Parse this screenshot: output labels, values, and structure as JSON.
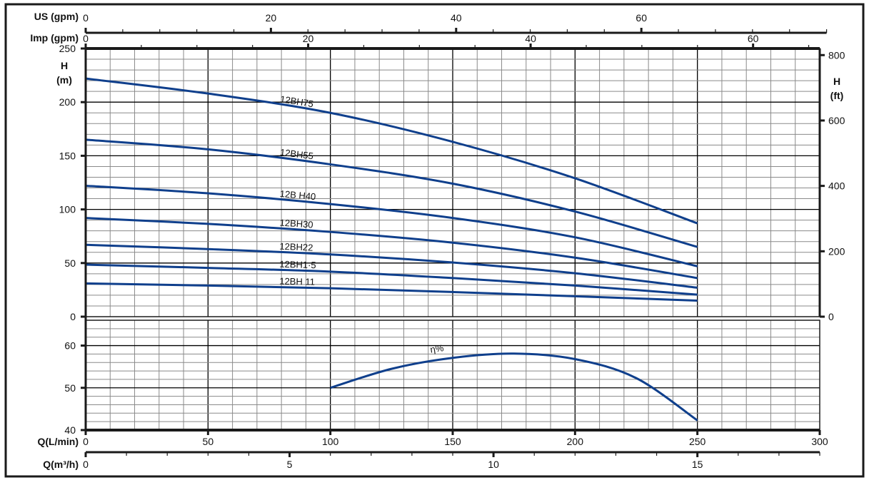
{
  "chart_data": [
    {
      "type": "line",
      "panel": "head",
      "xlabel": "Q(L/min)",
      "ylabel": "H (m)",
      "ylabel_right": "H (ft)",
      "x_ticks": [
        0,
        50,
        100,
        150,
        200,
        250,
        300
      ],
      "y_ticks": [
        0,
        50,
        100,
        150,
        200,
        250
      ],
      "y_right_ticks": [
        0,
        200,
        400,
        600,
        800
      ],
      "xlim": [
        0,
        300
      ],
      "ylim": [
        0,
        250
      ],
      "grid": true,
      "x": [
        0,
        50,
        100,
        150,
        200,
        250
      ],
      "series": [
        {
          "name": "12BH75",
          "values": [
            222,
            208,
            190,
            163,
            129,
            87
          ]
        },
        {
          "name": "12BH55",
          "values": [
            165,
            156,
            142,
            124,
            98,
            65
          ]
        },
        {
          "name": "12BH40",
          "values": [
            122,
            115,
            105,
            92,
            74,
            47
          ]
        },
        {
          "name": "12BH30",
          "values": [
            92,
            86.5,
            79,
            69,
            55,
            36
          ]
        },
        {
          "name": "12BH22",
          "values": [
            67,
            63,
            58,
            50.5,
            40.5,
            27
          ]
        },
        {
          "name": "12BH15",
          "values": [
            48.5,
            45.5,
            42,
            36,
            29,
            20.5
          ]
        },
        {
          "name": "12BH11",
          "values": [
            31,
            29,
            26.5,
            23,
            19,
            15
          ]
        }
      ],
      "series_labels": [
        "12BH75",
        "12BH55",
        "12B H40",
        "12BH30",
        "12BH22",
        "12BH1·5",
        "12BH 11"
      ]
    },
    {
      "type": "line",
      "panel": "efficiency",
      "xlim": [
        0,
        300
      ],
      "ylim": [
        40,
        66
      ],
      "y_ticks": [
        40,
        50,
        60
      ],
      "grid": true,
      "x": [
        100,
        125,
        150,
        175,
        200,
        225,
        250
      ],
      "series": [
        {
          "name": "η%",
          "values": [
            50,
            54.5,
            57.1,
            58.1,
            56.8,
            52.3,
            42.3
          ]
        }
      ]
    }
  ],
  "axes": {
    "us_gpm": {
      "label": "US (gpm)",
      "ticks": [
        0,
        20,
        40,
        60
      ]
    },
    "imp_gpm": {
      "label": "Imp (gpm)",
      "ticks": [
        0,
        20,
        40,
        60
      ]
    },
    "q_lmin": {
      "label": "Q(L/min)",
      "ticks": [
        0,
        50,
        100,
        150,
        200,
        250,
        300
      ]
    },
    "q_m3h": {
      "label": "Q(m³/h)",
      "ticks": [
        0,
        5,
        10,
        15
      ]
    },
    "h_m": {
      "label_1": "H",
      "label_2": "(m)"
    },
    "h_ft": {
      "label_1": "H",
      "label_2": "(ft)"
    }
  },
  "colors": {
    "curve": "#0f3f8c",
    "grid_minor": "#8a8a8a",
    "grid_major": "#000000",
    "frame": "#1a1a1a"
  }
}
